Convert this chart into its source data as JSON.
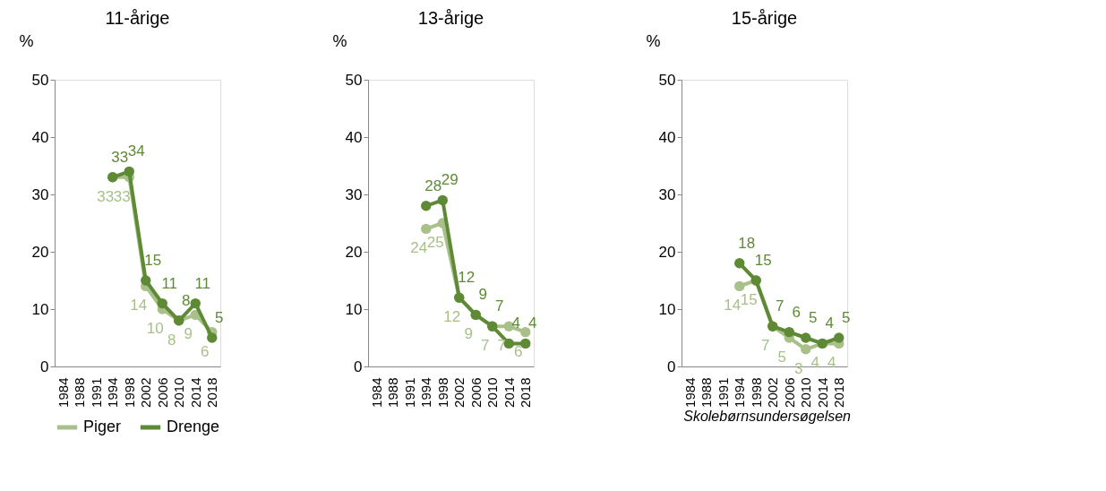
{
  "chart_data": [
    {
      "type": "line",
      "title": "11-årige",
      "ylabel": "%",
      "categories": [
        "1984",
        "1988",
        "1991",
        "1994",
        "1998",
        "2002",
        "2006",
        "2010",
        "2014",
        "2018"
      ],
      "ylim": [
        0,
        50
      ],
      "yticks": [
        0,
        10,
        20,
        30,
        40,
        50
      ],
      "data_labels": true,
      "marker": "circle",
      "line_style": "solid",
      "grid": false,
      "legend": "bottom",
      "series": [
        {
          "name": "Piger",
          "color": "#a9c08a",
          "values": [
            null,
            null,
            null,
            33,
            33,
            14,
            10,
            8,
            9,
            6
          ]
        },
        {
          "name": "Drenge",
          "color": "#5e8a35",
          "values": [
            null,
            null,
            null,
            33,
            34,
            15,
            11,
            8,
            11,
            5
          ]
        }
      ]
    },
    {
      "type": "line",
      "title": "13-årige",
      "ylabel": "%",
      "categories": [
        "1984",
        "1988",
        "1991",
        "1994",
        "1998",
        "2002",
        "2006",
        "2010",
        "2014",
        "2018"
      ],
      "ylim": [
        0,
        50
      ],
      "yticks": [
        0,
        10,
        20,
        30,
        40,
        50
      ],
      "data_labels": true,
      "marker": "circle",
      "line_style": "solid",
      "grid": false,
      "legend": "bottom",
      "series": [
        {
          "name": "Piger",
          "color": "#a9c08a",
          "values": [
            null,
            null,
            null,
            24,
            25,
            12,
            9,
            7,
            7,
            6
          ]
        },
        {
          "name": "Drenge",
          "color": "#5e8a35",
          "values": [
            null,
            null,
            null,
            28,
            29,
            12,
            9,
            7,
            4,
            4
          ]
        }
      ]
    },
    {
      "type": "line",
      "title": "15-årige",
      "ylabel": "%",
      "categories": [
        "1984",
        "1988",
        "1991",
        "1994",
        "1998",
        "2002",
        "2006",
        "2010",
        "2014",
        "2018"
      ],
      "ylim": [
        0,
        50
      ],
      "yticks": [
        0,
        10,
        20,
        30,
        40,
        50
      ],
      "data_labels": true,
      "marker": "circle",
      "line_style": "solid",
      "grid": false,
      "legend": "bottom",
      "annotations": [
        "Skolebørnsundersøgelsen"
      ],
      "series": [
        {
          "name": "Piger",
          "color": "#a9c08a",
          "values": [
            null,
            null,
            null,
            14,
            15,
            7,
            5,
            3,
            4,
            4
          ]
        },
        {
          "name": "Drenge",
          "color": "#5e8a35",
          "values": [
            null,
            null,
            null,
            18,
            15,
            7,
            6,
            5,
            4,
            5
          ]
        }
      ]
    }
  ]
}
